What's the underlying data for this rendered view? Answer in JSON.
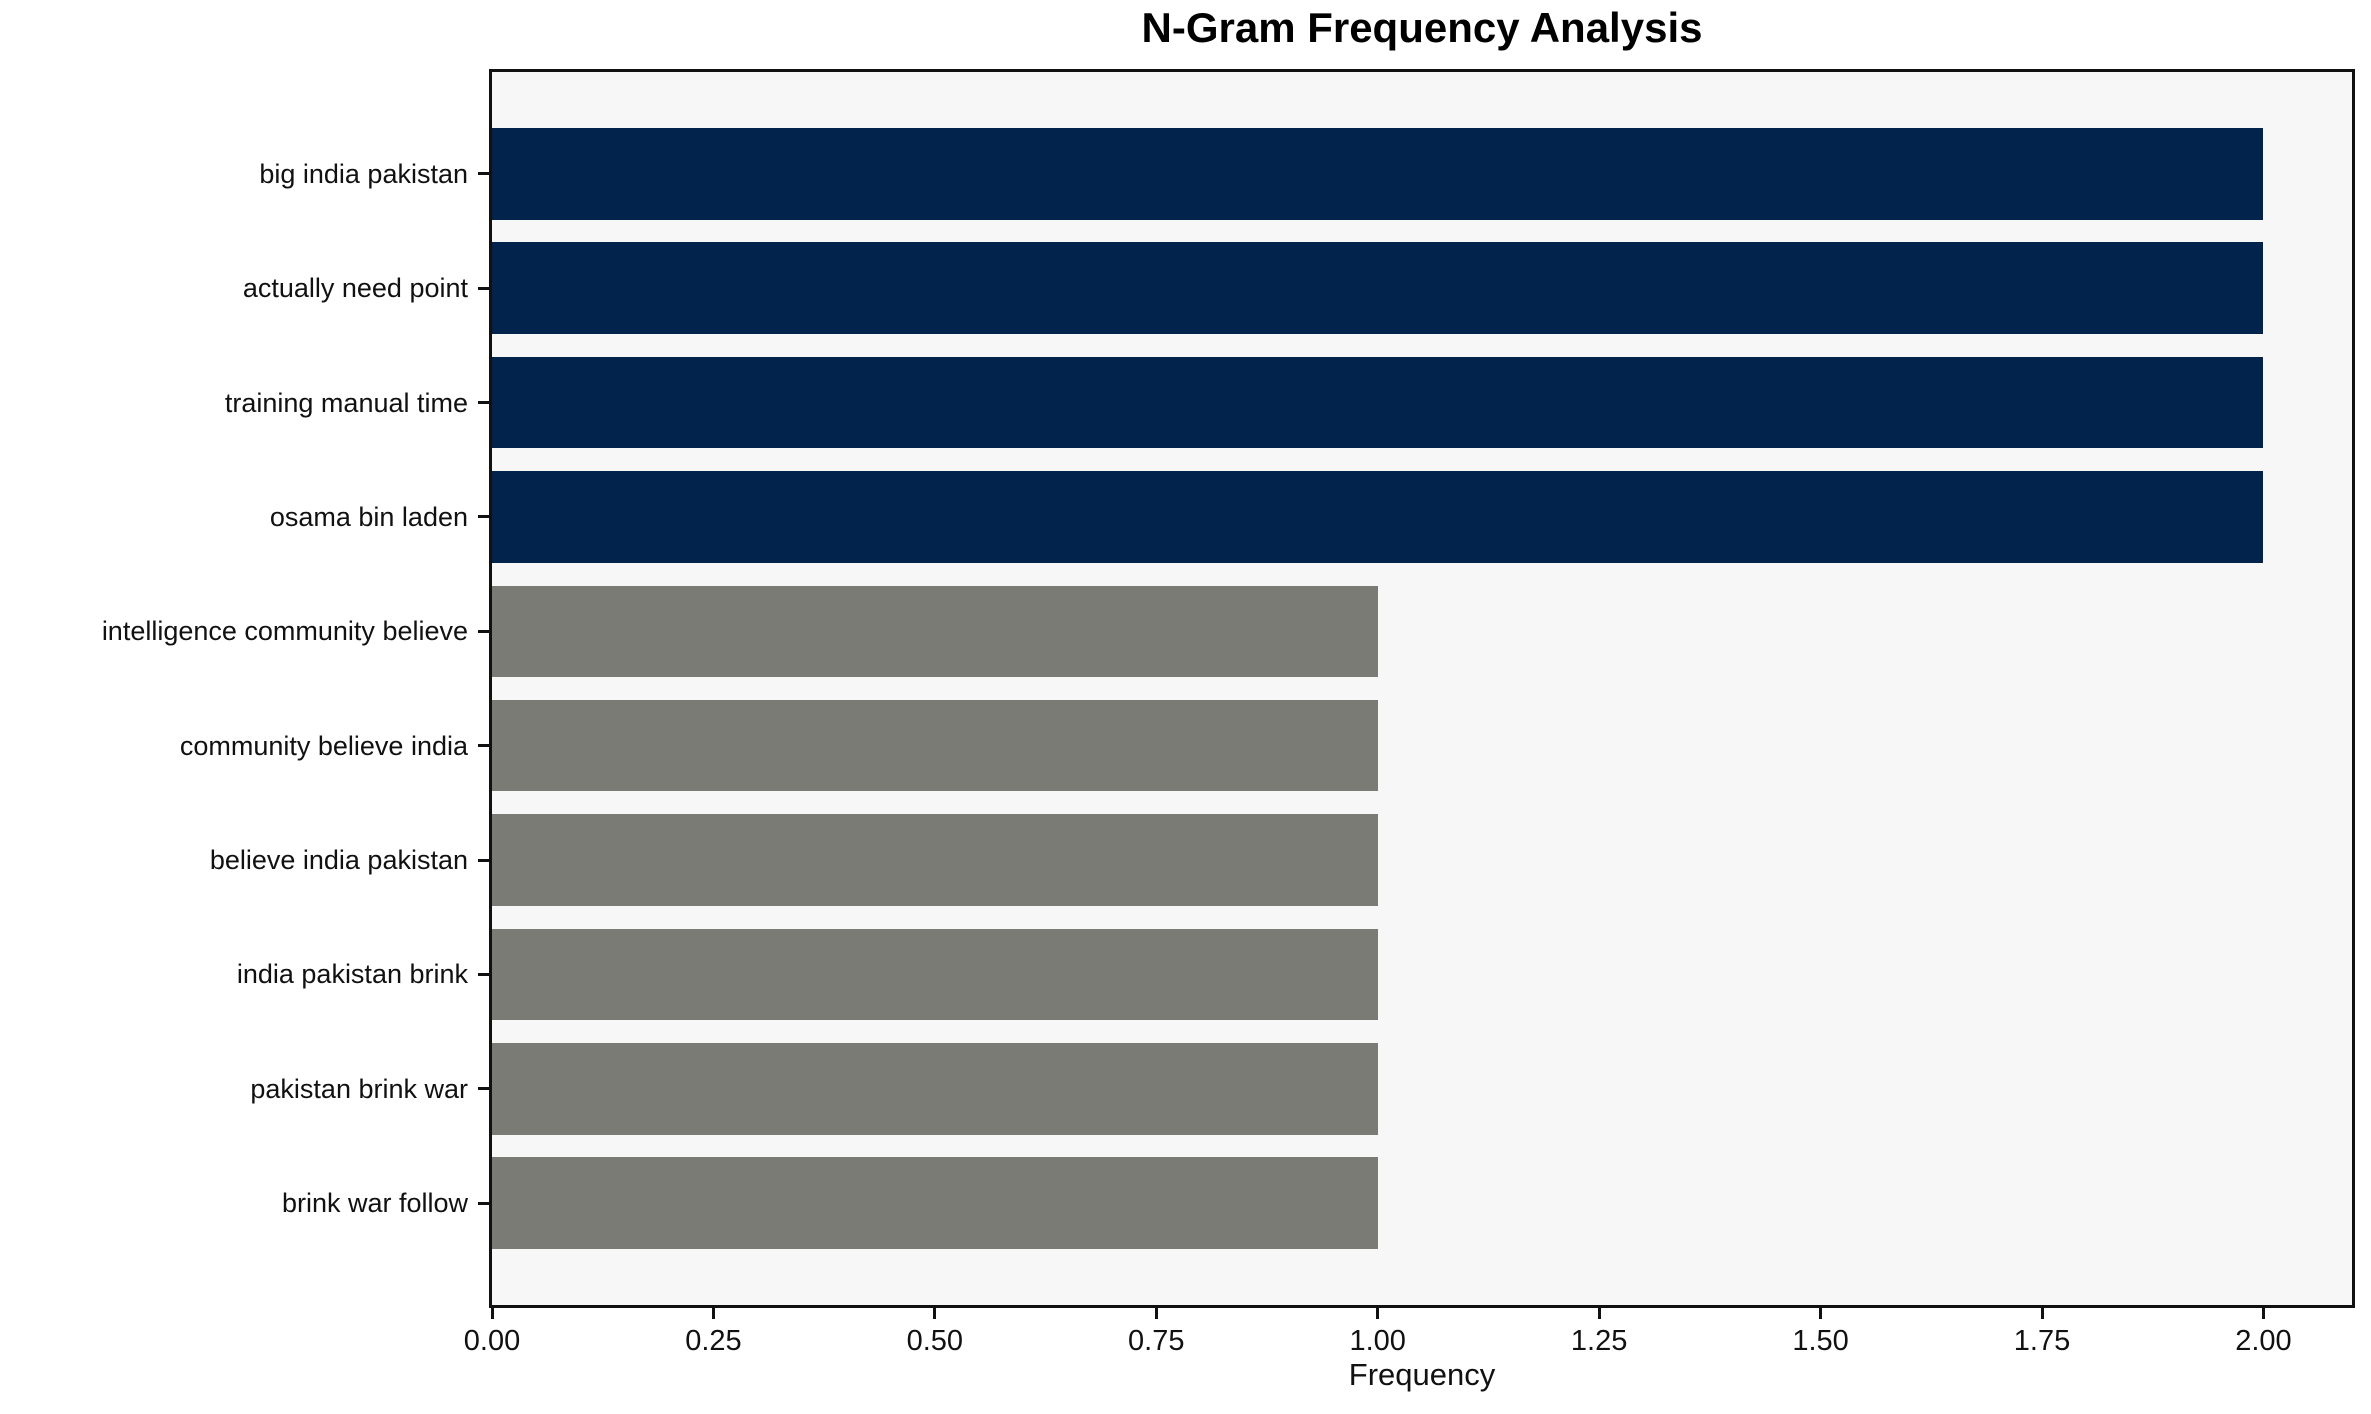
{
  "title": "N-Gram Frequency Analysis",
  "chart_data": {
    "type": "bar",
    "orientation": "horizontal",
    "title": "N-Gram Frequency Analysis",
    "xlabel": "Frequency",
    "ylabel": "",
    "categories": [
      "big india pakistan",
      "actually need point",
      "training manual time",
      "osama bin laden",
      "intelligence community believe",
      "community believe india",
      "believe india pakistan",
      "india pakistan brink",
      "pakistan brink war",
      "brink war follow"
    ],
    "values": [
      2,
      2,
      2,
      2,
      1,
      1,
      1,
      1,
      1,
      1
    ],
    "bar_colors": [
      "#02234c",
      "#02234c",
      "#02234c",
      "#02234c",
      "#7b7b76",
      "#7b7b76",
      "#7b7b76",
      "#7b7b76",
      "#7b7b76",
      "#7b7b76"
    ],
    "x_ticks": [
      {
        "value": 0.0,
        "label": "0.00"
      },
      {
        "value": 0.25,
        "label": "0.25"
      },
      {
        "value": 0.5,
        "label": "0.50"
      },
      {
        "value": 0.75,
        "label": "0.75"
      },
      {
        "value": 1.0,
        "label": "1.00"
      },
      {
        "value": 1.25,
        "label": "1.25"
      },
      {
        "value": 1.5,
        "label": "1.50"
      },
      {
        "value": 1.75,
        "label": "1.75"
      },
      {
        "value": 2.0,
        "label": "2.00"
      }
    ],
    "xlim": [
      0,
      2.1
    ],
    "grid": false,
    "legend": null,
    "plot_background": "#f7f7f8",
    "spine_color": "#111111",
    "highlight_color": "#02234c",
    "default_color": "#7b7b76"
  }
}
